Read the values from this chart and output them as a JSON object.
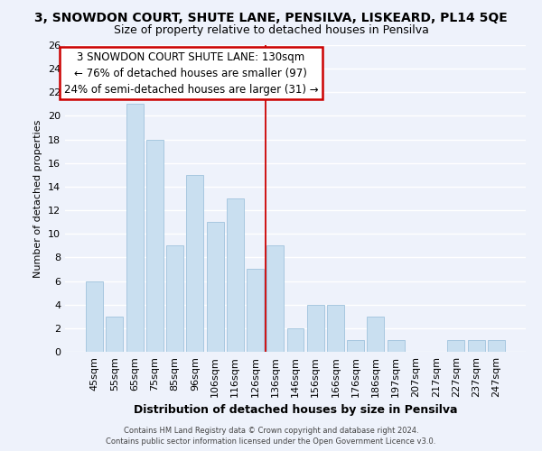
{
  "title": "3, SNOWDON COURT, SHUTE LANE, PENSILVA, LISKEARD, PL14 5QE",
  "subtitle": "Size of property relative to detached houses in Pensilva",
  "xlabel": "Distribution of detached houses by size in Pensilva",
  "ylabel": "Number of detached properties",
  "footer_line1": "Contains HM Land Registry data © Crown copyright and database right 2024.",
  "footer_line2": "Contains public sector information licensed under the Open Government Licence v3.0.",
  "bar_labels": [
    "45sqm",
    "55sqm",
    "65sqm",
    "75sqm",
    "85sqm",
    "96sqm",
    "106sqm",
    "116sqm",
    "126sqm",
    "136sqm",
    "146sqm",
    "156sqm",
    "166sqm",
    "176sqm",
    "186sqm",
    "197sqm",
    "207sqm",
    "217sqm",
    "227sqm",
    "237sqm",
    "247sqm"
  ],
  "bar_values": [
    6,
    3,
    21,
    18,
    9,
    15,
    11,
    13,
    7,
    9,
    2,
    4,
    4,
    1,
    3,
    1,
    0,
    0,
    1,
    1,
    1
  ],
  "bar_color": "#c9dff0",
  "bar_edge_color": "#a8c8e0",
  "background_color": "#eef2fb",
  "grid_color": "#ffffff",
  "vline_x": 8.5,
  "vline_color": "#cc0000",
  "annotation_line1": "3 SNOWDON COURT SHUTE LANE: 130sqm",
  "annotation_line2": "← 76% of detached houses are smaller (97)",
  "annotation_line3": "24% of semi-detached houses are larger (31) →",
  "annotation_box_color": "#ffffff",
  "annotation_box_edge_color": "#cc0000",
  "ylim": [
    0,
    26
  ],
  "yticks": [
    0,
    2,
    4,
    6,
    8,
    10,
    12,
    14,
    16,
    18,
    20,
    22,
    24,
    26
  ],
  "title_fontsize": 10,
  "subtitle_fontsize": 9,
  "ylabel_fontsize": 8,
  "xlabel_fontsize": 9,
  "tick_fontsize": 8,
  "annotation_fontsize": 8.5,
  "footer_fontsize": 6
}
